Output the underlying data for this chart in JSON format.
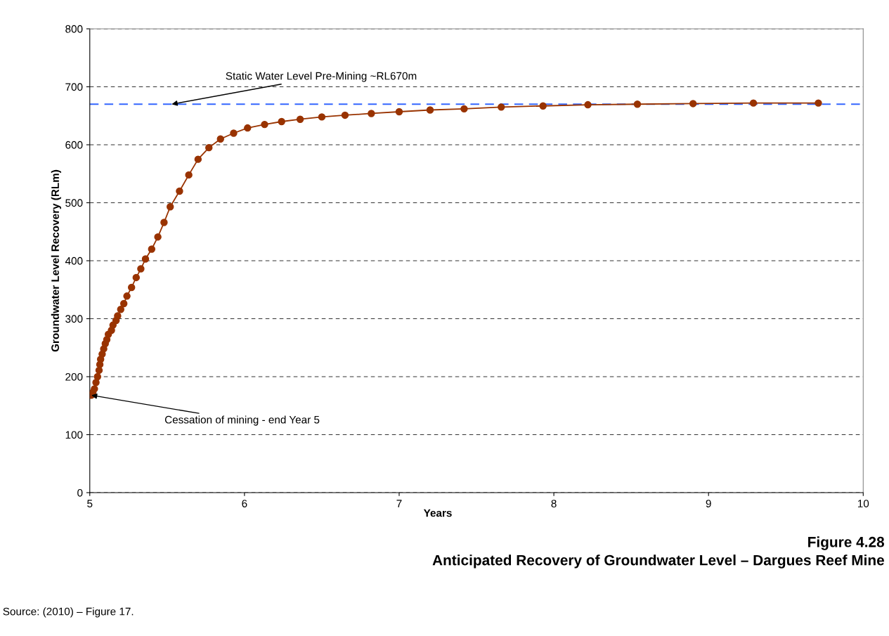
{
  "chart_data": {
    "type": "line",
    "title": "Figure 4.28",
    "subtitle": "Anticipated Recovery of Groundwater Level – Dargues Reef Mine",
    "xlabel": "Years",
    "ylabel": "Groundwater Level Recovery (RLm)",
    "xlim": [
      5,
      10
    ],
    "xticks": [
      5,
      6,
      7,
      8,
      9,
      10
    ],
    "ylim": [
      0,
      800
    ],
    "yticks": [
      0,
      100,
      200,
      300,
      400,
      500,
      600,
      700,
      800
    ],
    "grid": "y",
    "marker": "circle",
    "line_style": "solid",
    "series": [
      {
        "color": "#993300",
        "x": [
          5.01,
          5.02,
          5.03,
          5.04,
          5.05,
          5.06,
          5.065,
          5.07,
          5.08,
          5.09,
          5.1,
          5.11,
          5.12,
          5.14,
          5.15,
          5.17,
          5.18,
          5.2,
          5.22,
          5.24,
          5.27,
          5.3,
          5.33,
          5.36,
          5.4,
          5.44,
          5.48,
          5.52,
          5.58,
          5.64,
          5.7,
          5.77,
          5.845,
          5.93,
          6.02,
          6.13,
          6.24,
          6.36,
          6.5,
          6.65,
          6.82,
          7.0,
          7.2,
          7.42,
          7.66,
          7.93,
          8.22,
          8.54,
          8.9,
          9.29,
          9.71
        ],
        "values": [
          168,
          173,
          179,
          190,
          200,
          211,
          221,
          230,
          239,
          248,
          257,
          264,
          273,
          280,
          289,
          297,
          305,
          316,
          326,
          339,
          354,
          371,
          386,
          403,
          420,
          441,
          466,
          493,
          520,
          548,
          575,
          595,
          610,
          620,
          629,
          635,
          640,
          644,
          648,
          651,
          654,
          657,
          660,
          662,
          665,
          667,
          669,
          670,
          671,
          672,
          672
        ]
      }
    ],
    "ref_lines": [
      {
        "axis": "y",
        "value": 670,
        "color": "#3366ff",
        "line_style": "dashed"
      }
    ],
    "annotations": [
      {
        "text": "Static Water Level Pre-Mining ~RL670m",
        "x": 5.53,
        "y": 670
      },
      {
        "text": "Cessation of mining - end Year 5",
        "x": 5.01,
        "y": 168
      },
      "Source: (2010) – Figure 17."
    ]
  }
}
